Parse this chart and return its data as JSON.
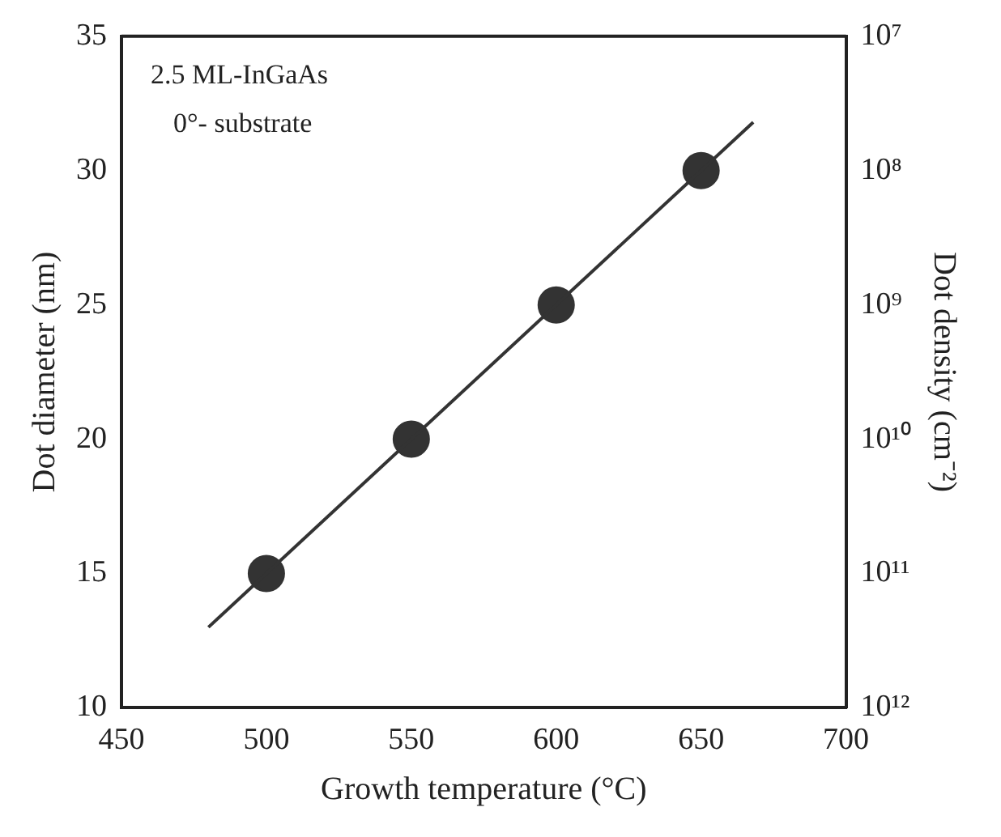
{
  "chart_data": {
    "type": "scatter",
    "xlabel": "Growth temperature (°C)",
    "ylabel": "Dot diameter (nm)",
    "y2label": "Dot density (cm⁻²)",
    "annotations": [
      "2.5 ML-InGaAs",
      "0°- substrate"
    ],
    "series": [
      {
        "type": "line",
        "color": "#333333",
        "x": [
          480,
          668
        ],
        "values": [
          13,
          31.8
        ],
        "marker": "none",
        "line_style": "solid"
      },
      {
        "color": "#333333",
        "x": [
          500,
          550,
          600,
          650
        ],
        "values": [
          15,
          20,
          25,
          30
        ],
        "marker": "circle"
      }
    ],
    "xlim": [
      450,
      700
    ],
    "xticks": [
      450,
      500,
      550,
      600,
      650,
      700
    ],
    "ylim": [
      10,
      35
    ],
    "yticks": [
      10,
      15,
      20,
      25,
      30,
      35
    ],
    "y2lim": [
      1000000000000,
      10000000
    ],
    "log": "y2",
    "y2ticks": [
      {
        "value": 1000000000000,
        "label": "10¹²"
      },
      {
        "value": 100000000000,
        "label": "10¹¹"
      },
      {
        "value": 10000000000,
        "label": "10¹⁰"
      },
      {
        "value": 1000000000,
        "label": "10⁹"
      },
      {
        "value": 100000000,
        "label": "10⁸"
      },
      {
        "value": 10000000,
        "label": "10⁷"
      }
    ],
    "grid": false,
    "legend": false
  }
}
